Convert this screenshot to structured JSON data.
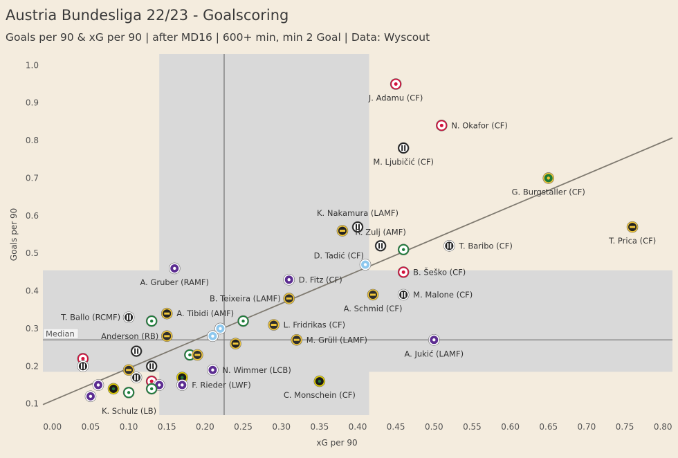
{
  "title": "Austria Bundesliga 22/23 - Goalscoring",
  "subtitle": "Goals per 90 & xG per 90 | after MD16 | 600+ min, min 2 Goal | Data: Wyscout",
  "chart_data": {
    "type": "scatter",
    "xlabel": "xG per 90",
    "ylabel": "Goals per 90",
    "xlim": [
      -0.0125,
      0.8125
    ],
    "ylim": [
      0.07,
      1.03
    ],
    "x_ticks": [
      "0.00",
      "0.05",
      "0.10",
      "0.15",
      "0.20",
      "0.25",
      "0.30",
      "0.35",
      "0.40",
      "0.45",
      "0.50",
      "0.55",
      "0.60",
      "0.65",
      "0.70",
      "0.75",
      "0.80"
    ],
    "x_tick_values": [
      0,
      0.05,
      0.1,
      0.15,
      0.2,
      0.25,
      0.3,
      0.35,
      0.4,
      0.45,
      0.5,
      0.55,
      0.6,
      0.65,
      0.7,
      0.75,
      0.8
    ],
    "y_ticks": [
      "0.1",
      "0.2",
      "0.3",
      "0.4",
      "0.5",
      "0.6",
      "0.7",
      "0.8",
      "0.9",
      "1.0"
    ],
    "y_tick_values": [
      0.1,
      0.2,
      0.3,
      0.4,
      0.5,
      0.6,
      0.7,
      0.8,
      0.9,
      1.0
    ],
    "median_x": 0.225,
    "median_y": 0.27,
    "median_label": "Median",
    "trend_line": {
      "x0": -0.0125,
      "y0": 0.098,
      "x1": 0.8125,
      "y1": 0.807
    },
    "shaded_band_x": [
      0.14,
      0.415
    ],
    "shaded_band_y": [
      0.185,
      0.455
    ],
    "grid": false,
    "colors": {
      "background": "#f4ecde",
      "shade": "#d9d9d9",
      "median": "#777777",
      "trend": "#7f7a70",
      "text": "#333333"
    },
    "teams": {
      "RBS": {
        "fill": "#ffffff",
        "ring": "#d3123d",
        "accent": "#1c2a5c"
      },
      "LASK": {
        "fill": "#ffffff",
        "ring": "#222222",
        "accent": "#222222"
      },
      "RAP": {
        "fill": "#1e7a35",
        "ring": "#f0c63a",
        "accent": "#f0c63a"
      },
      "WAC": {
        "fill": "#8a8a8a",
        "ring": "#ffffff",
        "accent": "#ffffff"
      },
      "STU": {
        "fill": "#222222",
        "ring": "#ffffff",
        "accent": "#ffffff"
      },
      "AUS": {
        "fill": "#5c2d91",
        "ring": "#ffffff",
        "accent": "#ffffff"
      },
      "ALT": {
        "fill": "#2f2f2f",
        "ring": "#f0c63a",
        "accent": "#f0c63a"
      },
      "WSG": {
        "fill": "#ffffff",
        "ring": "#1d7f3a",
        "accent": "#1d7f3a"
      },
      "SCR": {
        "fill": "#222222",
        "ring": "#f0c63a",
        "accent": "#f0c63a"
      },
      "BWL": {
        "fill": "#8ec8ee",
        "ring": "#ffffff",
        "accent": "#ffffff"
      },
      "RIE": {
        "fill": "#ffffff",
        "ring": "#1b6b3a",
        "accent": "#1b6b3a"
      },
      "HAR": {
        "fill": "#1a1a1a",
        "ring": "#e6d200",
        "accent": "#1f7a3a"
      }
    },
    "points": [
      {
        "x": 0.45,
        "y": 0.95,
        "team": "RBS",
        "label": "J. Adamu (CF)",
        "label_pos": "below"
      },
      {
        "x": 0.51,
        "y": 0.84,
        "team": "RBS",
        "label": "N. Okafor (CF)",
        "label_pos": "right"
      },
      {
        "x": 0.46,
        "y": 0.78,
        "team": "LASK",
        "label": "M. Ljubičić (CF)",
        "label_pos": "below"
      },
      {
        "x": 0.65,
        "y": 0.7,
        "team": "RAP",
        "label": "G. Burgstaller (CF)",
        "label_pos": "below"
      },
      {
        "x": 0.76,
        "y": 0.57,
        "team": "SCR",
        "label": "T. Prica (CF)",
        "label_pos": "below"
      },
      {
        "x": 0.4,
        "y": 0.57,
        "team": "LASK",
        "label": "K. Nakamura (LAMF)",
        "label_pos": "above"
      },
      {
        "x": 0.38,
        "y": 0.56,
        "team": "SCR",
        "label": "",
        "label_pos": "none"
      },
      {
        "x": 0.43,
        "y": 0.52,
        "team": "LASK",
        "label": "R. Zulj (AMF)",
        "label_pos": "above"
      },
      {
        "x": 0.46,
        "y": 0.51,
        "team": "WSG",
        "label": "",
        "label_pos": "none"
      },
      {
        "x": 0.52,
        "y": 0.52,
        "team": "STU",
        "label": "T. Baribo (CF)",
        "label_pos": "right"
      },
      {
        "x": 0.41,
        "y": 0.47,
        "team": "BWL",
        "label": "D. Tadić (CF)",
        "label_pos": "above-left"
      },
      {
        "x": 0.16,
        "y": 0.46,
        "team": "AUS",
        "label": "A. Gruber (RAMF)",
        "label_pos": "below"
      },
      {
        "x": 0.46,
        "y": 0.45,
        "team": "RBS",
        "label": "B. Šeško (CF)",
        "label_pos": "right"
      },
      {
        "x": 0.31,
        "y": 0.43,
        "team": "AUS",
        "label": "D. Fitz (CF)",
        "label_pos": "right"
      },
      {
        "x": 0.42,
        "y": 0.39,
        "team": "ALT",
        "label": "A. Schmid (CF)",
        "label_pos": "below"
      },
      {
        "x": 0.46,
        "y": 0.39,
        "team": "STU",
        "label": "M. Malone (CF)",
        "label_pos": "right"
      },
      {
        "x": 0.31,
        "y": 0.38,
        "team": "ALT",
        "label": "B. Teixeira (LAMF)",
        "label_pos": "left"
      },
      {
        "x": 0.1,
        "y": 0.33,
        "team": "STU",
        "label": "T. Ballo (RCMF)",
        "label_pos": "left"
      },
      {
        "x": 0.15,
        "y": 0.34,
        "team": "SCR",
        "label": "A. Tibidi (AMF)",
        "label_pos": "right"
      },
      {
        "x": 0.13,
        "y": 0.32,
        "team": "WSG",
        "label": "",
        "label_pos": "none"
      },
      {
        "x": 0.25,
        "y": 0.32,
        "team": "WSG",
        "label": "",
        "label_pos": "none"
      },
      {
        "x": 0.29,
        "y": 0.31,
        "team": "ALT",
        "label": "L. Fridrikas (CF)",
        "label_pos": "right"
      },
      {
        "x": 0.22,
        "y": 0.3,
        "team": "BWL",
        "label": "",
        "label_pos": "none"
      },
      {
        "x": 0.21,
        "y": 0.28,
        "team": "BWL",
        "label": "",
        "label_pos": "none"
      },
      {
        "x": 0.15,
        "y": 0.28,
        "team": "ALT",
        "label": "Anderson (RB)",
        "label_pos": "left"
      },
      {
        "x": 0.24,
        "y": 0.26,
        "team": "SCR",
        "label": "",
        "label_pos": "none"
      },
      {
        "x": 0.32,
        "y": 0.27,
        "team": "ALT",
        "label": "M. Grüll (LAMF)",
        "label_pos": "right"
      },
      {
        "x": 0.5,
        "y": 0.27,
        "team": "AUS",
        "label": "A. Jukić (LAMF)",
        "label_pos": "below"
      },
      {
        "x": 0.11,
        "y": 0.24,
        "team": "LASK",
        "label": "",
        "label_pos": "none"
      },
      {
        "x": 0.18,
        "y": 0.23,
        "team": "WSG",
        "label": "",
        "label_pos": "none"
      },
      {
        "x": 0.19,
        "y": 0.23,
        "team": "ALT",
        "label": "",
        "label_pos": "none"
      },
      {
        "x": 0.04,
        "y": 0.22,
        "team": "RBS",
        "label": "",
        "label_pos": "none"
      },
      {
        "x": 0.04,
        "y": 0.2,
        "team": "STU",
        "label": "",
        "label_pos": "none"
      },
      {
        "x": 0.13,
        "y": 0.2,
        "team": "LASK",
        "label": "",
        "label_pos": "none"
      },
      {
        "x": 0.21,
        "y": 0.19,
        "team": "AUS",
        "label": "N. Wimmer (LCB)",
        "label_pos": "right"
      },
      {
        "x": 0.1,
        "y": 0.19,
        "team": "ALT",
        "label": "",
        "label_pos": "none"
      },
      {
        "x": 0.11,
        "y": 0.17,
        "team": "STU",
        "label": "",
        "label_pos": "none"
      },
      {
        "x": 0.17,
        "y": 0.17,
        "team": "HAR",
        "label": "",
        "label_pos": "none"
      },
      {
        "x": 0.35,
        "y": 0.16,
        "team": "HAR",
        "label": "C. Monschein (CF)",
        "label_pos": "below"
      },
      {
        "x": 0.13,
        "y": 0.16,
        "team": "RBS",
        "label": "",
        "label_pos": "none"
      },
      {
        "x": 0.14,
        "y": 0.15,
        "team": "AUS",
        "label": "",
        "label_pos": "none"
      },
      {
        "x": 0.17,
        "y": 0.15,
        "team": "AUS",
        "label": "F. Rieder (LWF)",
        "label_pos": "right"
      },
      {
        "x": 0.06,
        "y": 0.15,
        "team": "AUS",
        "label": "",
        "label_pos": "none"
      },
      {
        "x": 0.08,
        "y": 0.14,
        "team": "HAR",
        "label": "",
        "label_pos": "none"
      },
      {
        "x": 0.13,
        "y": 0.14,
        "team": "WSG",
        "label": "",
        "label_pos": "none"
      },
      {
        "x": 0.1,
        "y": 0.13,
        "team": "WSG",
        "label": "",
        "label_pos": "none"
      },
      {
        "x": 0.05,
        "y": 0.12,
        "team": "AUS",
        "label": "K. Schulz (LB)",
        "label_pos": "below-right"
      }
    ]
  }
}
